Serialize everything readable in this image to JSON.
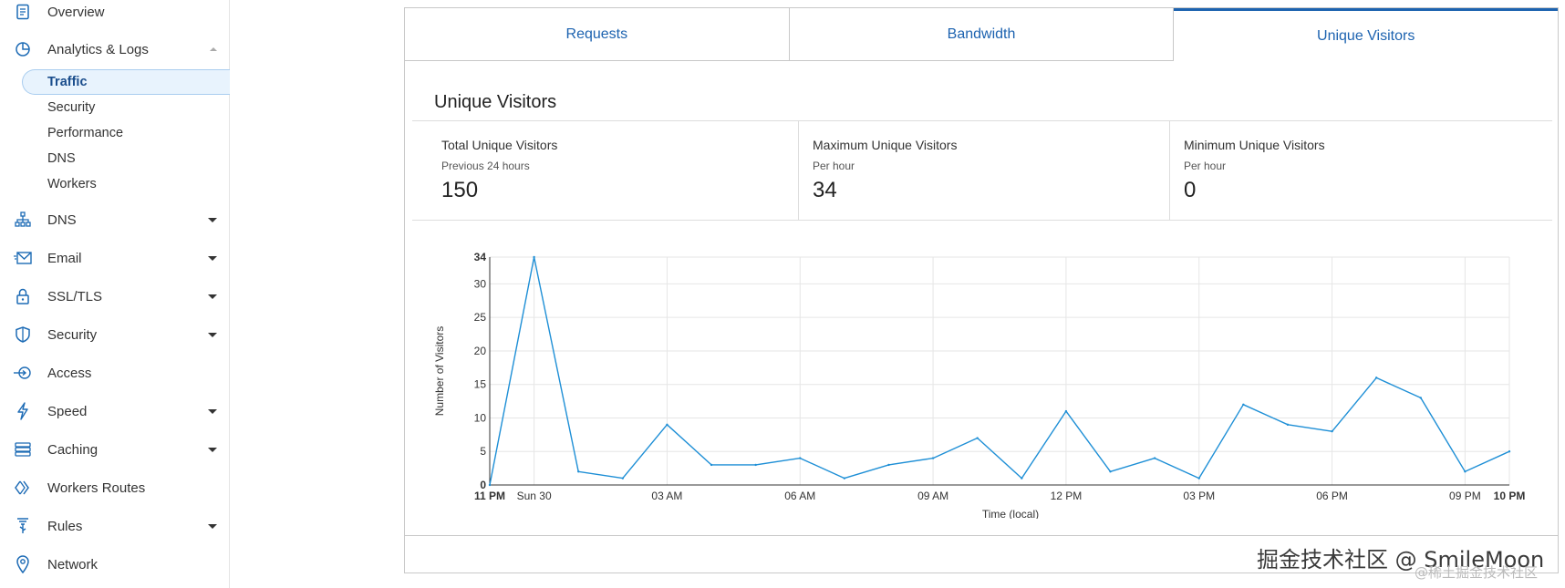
{
  "sidebar": {
    "items": [
      {
        "label": "Overview",
        "icon": "document-icon",
        "caret": "none"
      },
      {
        "label": "Analytics & Logs",
        "icon": "pie-chart-icon",
        "caret": "up"
      },
      {
        "label": "DNS",
        "icon": "network-tree-icon",
        "caret": "down"
      },
      {
        "label": "Email",
        "icon": "envelope-icon",
        "caret": "down"
      },
      {
        "label": "SSL/TLS",
        "icon": "lock-icon",
        "caret": "down"
      },
      {
        "label": "Security",
        "icon": "shield-icon",
        "caret": "down"
      },
      {
        "label": "Access",
        "icon": "access-icon",
        "caret": "none"
      },
      {
        "label": "Speed",
        "icon": "lightning-icon",
        "caret": "down"
      },
      {
        "label": "Caching",
        "icon": "server-stack-icon",
        "caret": "down"
      },
      {
        "label": "Workers Routes",
        "icon": "workers-icon",
        "caret": "none"
      },
      {
        "label": "Rules",
        "icon": "rules-icon",
        "caret": "down"
      },
      {
        "label": "Network",
        "icon": "location-pin-icon",
        "caret": "none"
      }
    ],
    "subitems": [
      {
        "label": "Traffic",
        "active": true
      },
      {
        "label": "Security",
        "active": false
      },
      {
        "label": "Performance",
        "active": false
      },
      {
        "label": "DNS",
        "active": false
      },
      {
        "label": "Workers",
        "active": false
      }
    ]
  },
  "tabs": [
    {
      "label": "Requests",
      "active": false
    },
    {
      "label": "Bandwidth",
      "active": false
    },
    {
      "label": "Unique Visitors",
      "active": true
    }
  ],
  "section_title": "Unique Visitors",
  "stats": [
    {
      "label": "Total Unique Visitors",
      "sub": "Previous 24 hours",
      "value": "150"
    },
    {
      "label": "Maximum Unique Visitors",
      "sub": "Per hour",
      "value": "34"
    },
    {
      "label": "Minimum Unique Visitors",
      "sub": "Per hour",
      "value": "0"
    }
  ],
  "chart_data": {
    "type": "line",
    "title": "",
    "xlabel": "Time (local)",
    "ylabel": "Number of Visitors",
    "ylim": [
      0,
      34
    ],
    "yticks": [
      0,
      5,
      10,
      15,
      20,
      25,
      30,
      34
    ],
    "bold_yticks": [
      0,
      34
    ],
    "x_tick_labels": [
      {
        "i": 0,
        "label": "11 PM",
        "bold": true
      },
      {
        "i": 1,
        "label": "Sun 30",
        "bold": false
      },
      {
        "i": 4,
        "label": "03 AM",
        "bold": false
      },
      {
        "i": 7,
        "label": "06 AM",
        "bold": false
      },
      {
        "i": 10,
        "label": "09 AM",
        "bold": false
      },
      {
        "i": 13,
        "label": "12 PM",
        "bold": false
      },
      {
        "i": 16,
        "label": "03 PM",
        "bold": false
      },
      {
        "i": 19,
        "label": "06 PM",
        "bold": false
      },
      {
        "i": 22,
        "label": "09 PM",
        "bold": false
      },
      {
        "i": 23,
        "label": "10 PM",
        "bold": true
      }
    ],
    "series": [
      {
        "values": [
          0,
          34,
          2,
          1,
          9,
          3,
          3,
          4,
          1,
          3,
          4,
          7,
          1,
          11,
          2,
          4,
          1,
          12,
          9,
          8,
          16,
          13,
          2,
          5
        ],
        "color": "#1e8fd6"
      }
    ],
    "grid": true
  },
  "watermark": {
    "main": "掘金技术社区 @ SmileMoon",
    "sub": "@稀土掘金技术社区"
  },
  "colors": {
    "accent": "#1d63b0",
    "line": "#1e8fd6",
    "active_bg": "#e8f3fd"
  }
}
